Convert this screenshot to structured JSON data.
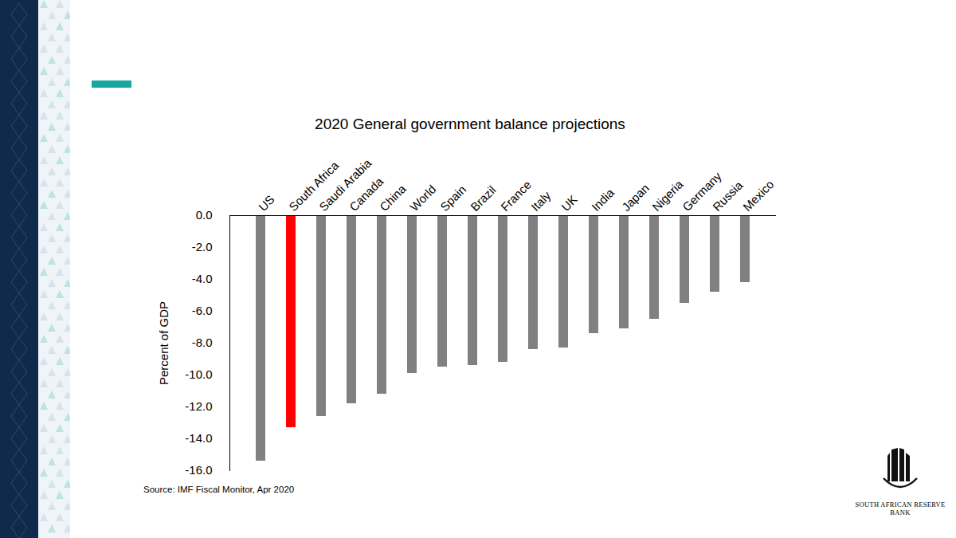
{
  "chart_data": {
    "type": "bar",
    "title": "2020 General government balance projections",
    "y_label": "Percent of GDP",
    "caption": "Source: IMF Fiscal Monitor, Apr 2020",
    "annotations": [
      "SOUTH AFRICAN RESERVE BANK"
    ],
    "categories": [
      "US",
      "South Africa",
      "Saudi Arabia",
      "Canada",
      "China",
      "World",
      "Spain",
      "Brazil",
      "France",
      "Italy",
      "UK",
      "India",
      "Japan",
      "Nigeria",
      "Germany",
      "Russia",
      "Mexico"
    ],
    "values": [
      -15.4,
      -13.3,
      -12.6,
      -11.8,
      -11.2,
      -9.9,
      -9.5,
      -9.4,
      -9.2,
      -8.4,
      -8.3,
      -7.4,
      -7.1,
      -6.5,
      -5.5,
      -4.8,
      -4.2
    ],
    "colors": [
      "#808080",
      "#ff0000",
      "#808080",
      "#808080",
      "#808080",
      "#808080",
      "#808080",
      "#808080",
      "#808080",
      "#808080",
      "#808080",
      "#808080",
      "#808080",
      "#808080",
      "#808080",
      "#808080",
      "#808080"
    ],
    "ylim": [
      -16,
      0
    ],
    "yticks": [
      {
        "value": 0,
        "label": "0.0"
      },
      {
        "value": -2,
        "label": "-2.0"
      },
      {
        "value": -4,
        "label": "-4.0"
      },
      {
        "value": -6,
        "label": "-6.0"
      },
      {
        "value": -8,
        "label": "-8.0"
      },
      {
        "value": -10,
        "label": "-10.0"
      },
      {
        "value": -12,
        "label": "-12.0"
      },
      {
        "value": -14,
        "label": "-14.0"
      },
      {
        "value": -16,
        "label": "-16.0"
      }
    ],
    "grid": false
  }
}
